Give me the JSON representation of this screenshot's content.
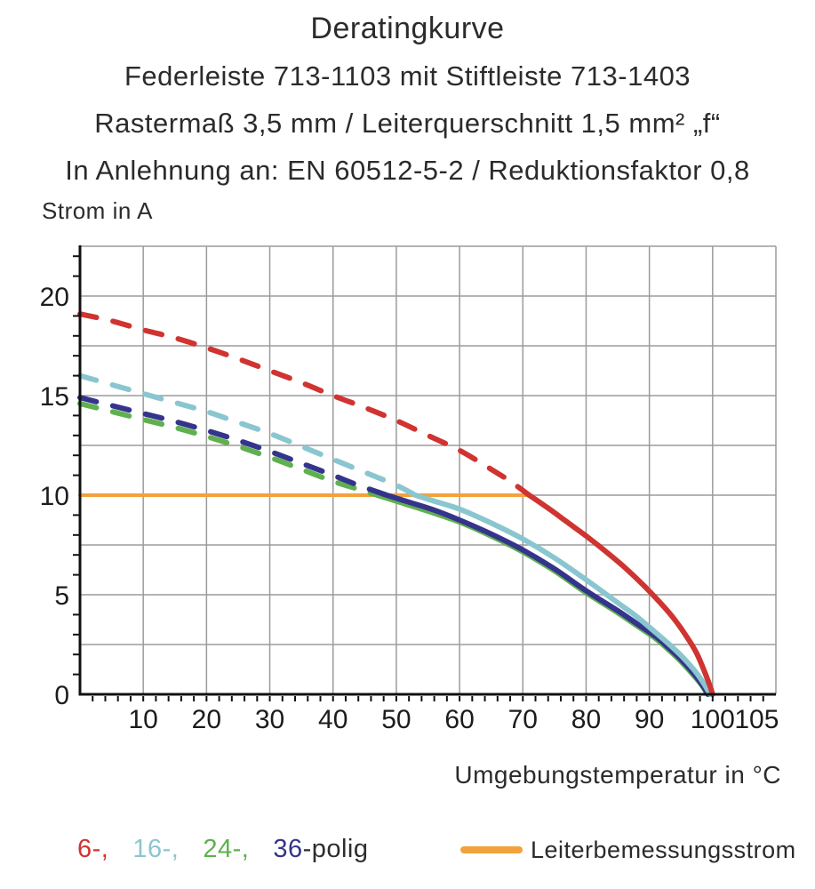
{
  "title": {
    "line1": "Deratingkurve",
    "line2": "Federleiste 713-1103 mit Stiftleiste 713-1403",
    "line3": "Rastermaß 3,5 mm / Leiterquerschnitt 1,5 mm² „f“",
    "line4": "In Anlehnung an: EN 60512-5-2 / Reduktionsfaktor 0,8"
  },
  "chart_data": {
    "type": "line",
    "title": "Deratingkurve",
    "ylabel": "Strom in A",
    "xlabel": "Umgebungstemperatur in °C",
    "xlim": [
      0,
      110
    ],
    "ylim": [
      0,
      22.5
    ],
    "x_tick_labels": [
      10,
      20,
      30,
      40,
      50,
      60,
      70,
      80,
      90,
      100,
      105
    ],
    "y_tick_labels": [
      0,
      5,
      10,
      15,
      20
    ],
    "grid": {
      "on": true,
      "x_step": 10,
      "y_step": 2.5,
      "minor_x_tick_step": 2,
      "minor_y_tick_step": 1
    },
    "colors": {
      "grid": "#9b9b9b",
      "axis": "#111111",
      "text": "#2b2b2b"
    },
    "series": [
      {
        "name": "6-polig",
        "color": "#cf3431",
        "dashed": [
          [
            0,
            19.1
          ],
          [
            5,
            18.75
          ],
          [
            10,
            18.3
          ],
          [
            15,
            17.9
          ],
          [
            20,
            17.4
          ],
          [
            25,
            16.85
          ],
          [
            30,
            16.25
          ],
          [
            35,
            15.65
          ],
          [
            40,
            15.0
          ],
          [
            45,
            14.4
          ],
          [
            50,
            13.75
          ],
          [
            55,
            13.0
          ],
          [
            60,
            12.25
          ],
          [
            65,
            11.3
          ],
          [
            68,
            10.7
          ],
          [
            71,
            10.0
          ]
        ],
        "solid": [
          [
            71,
            10.0
          ],
          [
            74,
            9.35
          ],
          [
            77,
            8.65
          ],
          [
            80,
            7.95
          ],
          [
            83,
            7.2
          ],
          [
            86,
            6.4
          ],
          [
            89,
            5.5
          ],
          [
            92,
            4.5
          ],
          [
            94,
            3.75
          ],
          [
            96,
            2.85
          ],
          [
            97.5,
            2.05
          ],
          [
            98.7,
            1.15
          ],
          [
            99.6,
            0.4
          ],
          [
            100,
            0
          ]
        ]
      },
      {
        "name": "16-polig",
        "color": "#8ac6cf",
        "dashed": [
          [
            0,
            16.0
          ],
          [
            5,
            15.55
          ],
          [
            10,
            15.1
          ],
          [
            15,
            14.65
          ],
          [
            20,
            14.2
          ],
          [
            25,
            13.65
          ],
          [
            30,
            13.1
          ],
          [
            35,
            12.45
          ],
          [
            40,
            11.8
          ],
          [
            45,
            11.15
          ],
          [
            50,
            10.5
          ],
          [
            53,
            10.0
          ]
        ],
        "solid": [
          [
            53,
            10.0
          ],
          [
            56,
            9.7
          ],
          [
            60,
            9.3
          ],
          [
            65,
            8.6
          ],
          [
            70,
            7.8
          ],
          [
            75,
            6.85
          ],
          [
            80,
            5.75
          ],
          [
            85,
            4.6
          ],
          [
            88,
            3.9
          ],
          [
            91,
            3.1
          ],
          [
            93,
            2.55
          ],
          [
            95,
            1.95
          ],
          [
            97,
            1.25
          ],
          [
            98.5,
            0.6
          ],
          [
            99.6,
            0
          ]
        ]
      },
      {
        "name": "24-polig",
        "color": "#5fb04f",
        "dashed": [
          [
            0,
            14.6
          ],
          [
            5,
            14.2
          ],
          [
            10,
            13.8
          ],
          [
            15,
            13.4
          ],
          [
            20,
            12.95
          ],
          [
            25,
            12.45
          ],
          [
            30,
            11.9
          ],
          [
            35,
            11.3
          ],
          [
            40,
            10.7
          ],
          [
            44,
            10.3
          ],
          [
            47,
            10.0
          ]
        ],
        "solid": [
          [
            47,
            10.0
          ],
          [
            50,
            9.7
          ],
          [
            55,
            9.2
          ],
          [
            60,
            8.65
          ],
          [
            65,
            7.95
          ],
          [
            70,
            7.15
          ],
          [
            75,
            6.2
          ],
          [
            80,
            5.1
          ],
          [
            85,
            4.1
          ],
          [
            88,
            3.45
          ],
          [
            91,
            2.8
          ],
          [
            93,
            2.25
          ],
          [
            95,
            1.65
          ],
          [
            97,
            0.95
          ],
          [
            98.3,
            0.45
          ],
          [
            99.2,
            0
          ]
        ]
      },
      {
        "name": "36-polig",
        "color": "#34348c",
        "dashed": [
          [
            0,
            14.9
          ],
          [
            5,
            14.5
          ],
          [
            10,
            14.1
          ],
          [
            15,
            13.7
          ],
          [
            20,
            13.25
          ],
          [
            25,
            12.75
          ],
          [
            30,
            12.2
          ],
          [
            35,
            11.6
          ],
          [
            40,
            11.0
          ],
          [
            44,
            10.5
          ],
          [
            48.5,
            10.0
          ]
        ],
        "solid": [
          [
            48.5,
            10.0
          ],
          [
            52,
            9.65
          ],
          [
            56,
            9.25
          ],
          [
            60,
            8.75
          ],
          [
            65,
            8.05
          ],
          [
            70,
            7.25
          ],
          [
            75,
            6.3
          ],
          [
            80,
            5.2
          ],
          [
            85,
            4.2
          ],
          [
            88,
            3.55
          ],
          [
            91,
            2.9
          ],
          [
            93,
            2.35
          ],
          [
            95,
            1.75
          ],
          [
            97,
            1.05
          ],
          [
            98.3,
            0.5
          ],
          [
            99.3,
            0
          ]
        ]
      }
    ],
    "reference_line": {
      "label": "Leiterbemessungsstrom",
      "value": 10,
      "x_start": 0,
      "x_end": 71,
      "color": "#f2a23c"
    }
  },
  "legend": {
    "parts": [
      {
        "text": "6-,",
        "color": "#cf3431"
      },
      {
        "text": "16-,",
        "color": "#8ac6cf"
      },
      {
        "text": "24-,",
        "color": "#5fb04f"
      },
      {
        "text": "36",
        "color": "#34348c"
      },
      {
        "text": "-polig",
        "color": "#2d2d2d"
      }
    ]
  }
}
